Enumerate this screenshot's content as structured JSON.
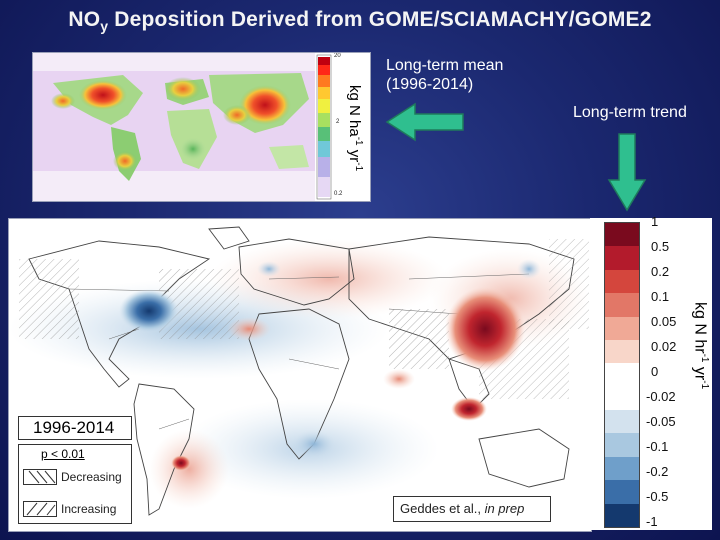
{
  "title": {
    "main": "NO",
    "sub": "y",
    "rest": " Deposition Derived from GOME/SCIAMACHY/GOME2"
  },
  "mean_panel": {
    "label_line1": "Long-term mean",
    "label_line2": "(1996-2014)",
    "colorbar_ticks": [
      "20",
      "2",
      "0.2"
    ],
    "unit_main": "kg N ha",
    "unit_sup1": "-1",
    "unit_mid": " yr",
    "unit_sup2": "-1"
  },
  "trend_panel": {
    "label": "Long-term trend",
    "period_label": "1996-2014",
    "significance_label": "p < 0.01",
    "legend_decreasing": "Decreasing",
    "legend_increasing": "Increasing",
    "citation_authors": "Geddes et al., ",
    "citation_status": "in prep",
    "colorbar_ticks": [
      "1",
      "0.5",
      "0.2",
      "0.1",
      "0.05",
      "0.02",
      "0",
      "-0.02",
      "-0.05",
      "-0.1",
      "-0.2",
      "-0.5",
      "-1"
    ],
    "colorbar_colors": [
      "#7a0a1e",
      "#b31b2c",
      "#d4463d",
      "#e27767",
      "#f0a996",
      "#f8d6c9",
      "#ffffff",
      "#ffffff",
      "#d3e2ee",
      "#a9c8e0",
      "#6f9fca",
      "#3a6ea8",
      "#14396e"
    ],
    "unit_main": "kg N hr",
    "unit_sup1": "-1",
    "unit_mid": " yr",
    "unit_sup2": "-1"
  },
  "colors": {
    "arrow_fill": "#2fbf8f",
    "arrow_edge": "#1f7a5c"
  }
}
